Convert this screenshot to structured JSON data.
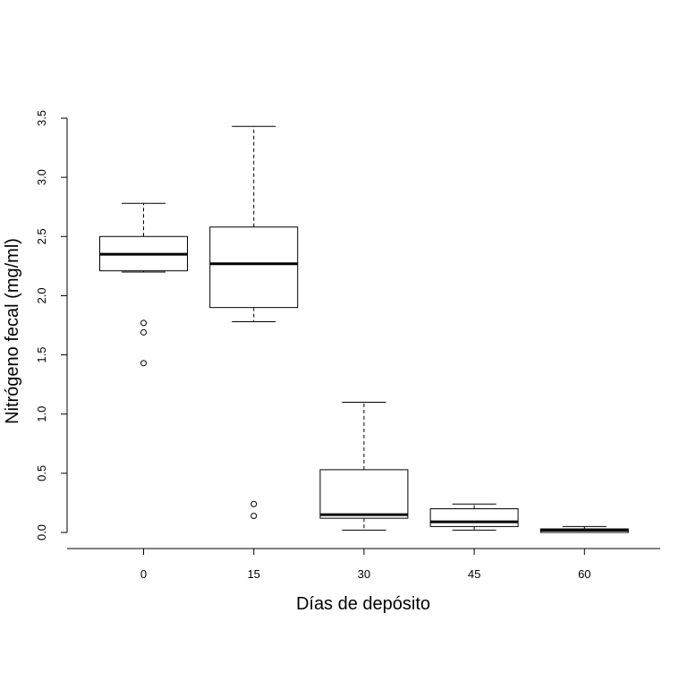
{
  "chart_data": {
    "type": "boxplot",
    "title": "",
    "xlabel": "Días de depósito",
    "ylabel": "Nitrógeno fecal (mg/ml)",
    "ylim": [
      0,
      3.5
    ],
    "y_ticks": [
      "0.0",
      "0.5",
      "1.0",
      "1.5",
      "2.0",
      "2.5",
      "3.0",
      "3.5"
    ],
    "grid": false,
    "legend": "none",
    "categories": [
      "0",
      "15",
      "30",
      "45",
      "60"
    ],
    "boxes": [
      {
        "category": "0",
        "whisker_low": 2.2,
        "q1": 2.21,
        "median": 2.35,
        "q3": 2.5,
        "whisker_high": 2.78,
        "outliers": [
          1.77,
          1.69,
          1.43
        ]
      },
      {
        "category": "15",
        "whisker_low": 1.78,
        "q1": 1.9,
        "median": 2.27,
        "q3": 2.58,
        "whisker_high": 3.43,
        "outliers": [
          0.24,
          0.14
        ]
      },
      {
        "category": "30",
        "whisker_low": 0.02,
        "q1": 0.12,
        "median": 0.15,
        "q3": 0.53,
        "whisker_high": 1.1,
        "outliers": []
      },
      {
        "category": "45",
        "whisker_low": 0.02,
        "q1": 0.05,
        "median": 0.09,
        "q3": 0.2,
        "whisker_high": 0.24,
        "outliers": []
      },
      {
        "category": "60",
        "whisker_low": 0.0,
        "q1": 0.0,
        "median": 0.02,
        "q3": 0.03,
        "whisker_high": 0.05,
        "outliers": []
      }
    ]
  }
}
